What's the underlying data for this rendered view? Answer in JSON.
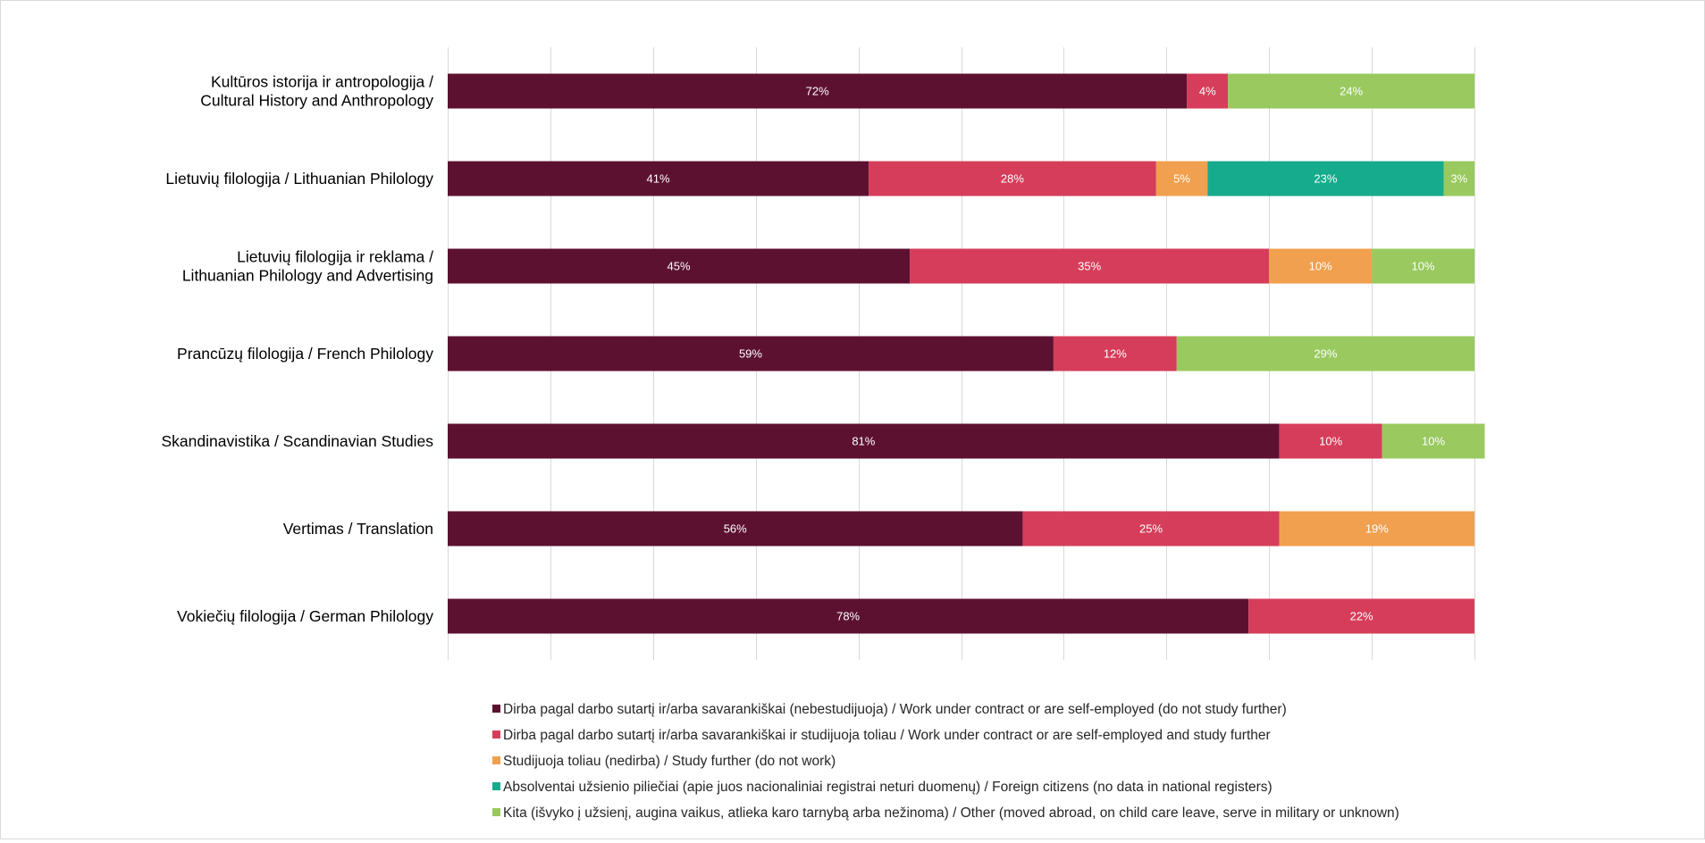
{
  "chart_data": {
    "type": "bar",
    "orientation": "horizontal",
    "stacked": true,
    "percent": true,
    "xlim": [
      0,
      100
    ],
    "grid": true,
    "legend_position": "bottom",
    "categories": [
      "Kultūros istorija ir antropologija / Cultural History and Anthropology",
      "Lietuvių filologija / Lithuanian Philology",
      "Lietuvių filologija ir reklama / Lithuanian Philology and Advertising",
      "Prancūzų filologija / French Philology",
      "Skandinavistika / Scandinavian Studies",
      "Vertimas / Translation",
      "Vokiečių filologija / German Philology"
    ],
    "category_lines": [
      [
        "Kultūros istorija ir antropologija /",
        "Cultural History and Anthropology"
      ],
      [
        "Lietuvių filologija / Lithuanian Philology"
      ],
      [
        "Lietuvių filologija ir reklama /",
        "Lithuanian Philology and Advertising"
      ],
      [
        "Prancūzų filologija / French Philology"
      ],
      [
        "Skandinavistika / Scandinavian Studies"
      ],
      [
        "Vertimas / Translation"
      ],
      [
        "Vokiečių filologija / German Philology"
      ]
    ],
    "series": [
      {
        "name": "Dirba pagal darbo sutartį ir/arba savarankiškai (nebestudijuoja) / Work under contract or are self-employed (do not study further)",
        "color": "#5d1131",
        "values": [
          72,
          41,
          45,
          59,
          81,
          56,
          78
        ]
      },
      {
        "name": "Dirba pagal darbo sutartį ir/arba savarankiškai  ir studijuoja toliau / Work under contract or are self-employed and study further",
        "color": "#d63d5a",
        "values": [
          4,
          28,
          35,
          12,
          10,
          25,
          22
        ]
      },
      {
        "name": "Studijuoja toliau (nedirba) / Study further (do not work)",
        "color": "#f0a04f",
        "values": [
          0,
          5,
          10,
          0,
          0,
          19,
          0
        ]
      },
      {
        "name": "Absolventai užsienio piliečiai (apie juos nacionaliniai registrai neturi duomenų) / Foreign citizens (no data in national registers)",
        "color": "#16ab8c",
        "values": [
          0,
          23,
          0,
          0,
          0,
          0,
          0
        ]
      },
      {
        "name": "Kita (išvyko į užsienį, augina vaikus, atlieka karo tarnybą arba nežinoma) / Other (moved abroad, on child care leave, serve in military or unknown)",
        "color": "#99c95f",
        "values": [
          24,
          3,
          10,
          29,
          10,
          0,
          0
        ]
      }
    ],
    "data_label_suffix": "%"
  }
}
